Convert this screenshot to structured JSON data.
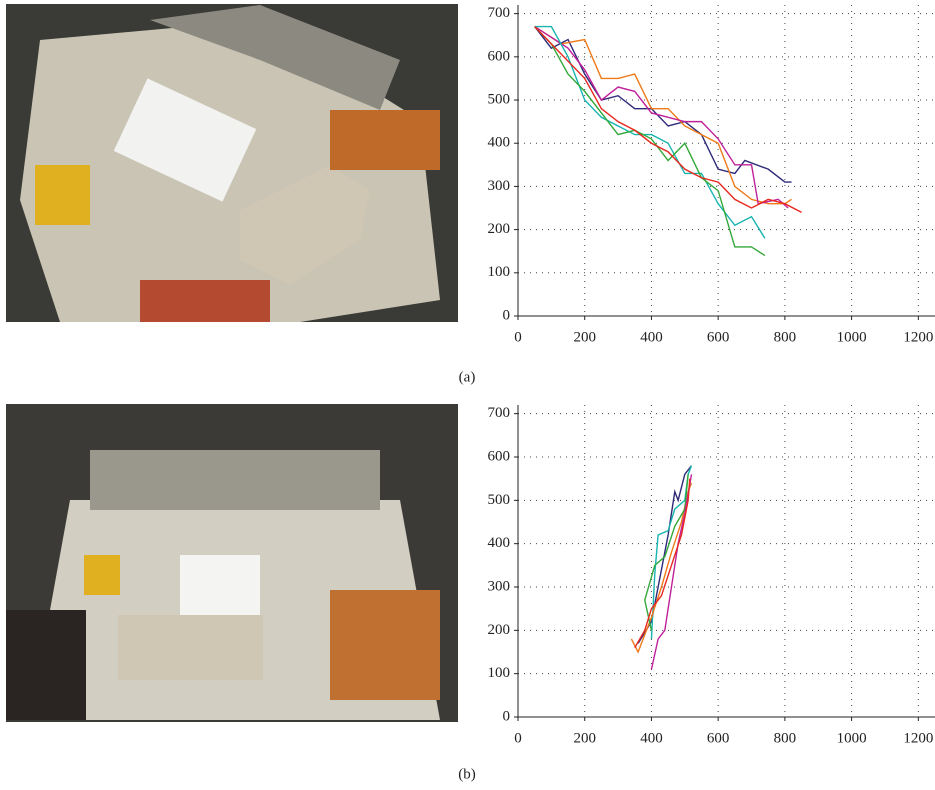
{
  "chart_data": [
    {
      "type": "line",
      "caption": "(a)",
      "xlim": [
        0,
        1250
      ],
      "ylim": [
        0,
        720
      ],
      "xticks": [
        0,
        200,
        400,
        600,
        800,
        1000,
        1200
      ],
      "yticks": [
        0,
        100,
        200,
        300,
        400,
        500,
        600,
        700
      ],
      "grid": true,
      "series": [
        {
          "color": "#2e2a7a",
          "x": [
            50,
            100,
            150,
            200,
            250,
            300,
            350,
            400,
            450,
            500,
            550,
            600,
            650,
            680,
            750,
            800,
            820
          ],
          "values": [
            670,
            620,
            640,
            560,
            500,
            510,
            480,
            480,
            440,
            450,
            420,
            340,
            330,
            360,
            340,
            310,
            310
          ]
        },
        {
          "color": "#f07a1a",
          "x": [
            50,
            130,
            200,
            250,
            300,
            350,
            400,
            450,
            500,
            550,
            600,
            650,
            700,
            750,
            800,
            820
          ],
          "values": [
            670,
            630,
            640,
            550,
            550,
            560,
            480,
            480,
            440,
            420,
            400,
            300,
            270,
            260,
            260,
            270
          ]
        },
        {
          "color": "#c0209a",
          "x": [
            50,
            150,
            200,
            250,
            300,
            350,
            400,
            450,
            500,
            550,
            600,
            650,
            700,
            720,
            780,
            810
          ],
          "values": [
            670,
            620,
            570,
            500,
            530,
            520,
            470,
            460,
            450,
            450,
            410,
            350,
            350,
            260,
            270,
            250
          ]
        },
        {
          "color": "#18b4b0",
          "x": [
            50,
            100,
            150,
            200,
            250,
            300,
            350,
            400,
            450,
            500,
            550,
            600,
            650,
            700,
            740
          ],
          "values": [
            670,
            670,
            600,
            500,
            460,
            440,
            420,
            420,
            400,
            330,
            330,
            260,
            210,
            230,
            180
          ]
        },
        {
          "color": "#34a83a",
          "x": [
            50,
            100,
            150,
            200,
            250,
            300,
            350,
            400,
            450,
            500,
            550,
            600,
            650,
            700,
            740
          ],
          "values": [
            670,
            630,
            560,
            520,
            470,
            420,
            430,
            410,
            360,
            400,
            320,
            290,
            160,
            160,
            140
          ]
        },
        {
          "color": "#e8281e",
          "x": [
            50,
            200,
            250,
            300,
            350,
            400,
            450,
            500,
            550,
            600,
            650,
            700,
            750,
            800,
            850
          ],
          "values": [
            670,
            550,
            480,
            450,
            430,
            400,
            380,
            340,
            320,
            310,
            270,
            250,
            270,
            260,
            240
          ]
        }
      ]
    },
    {
      "type": "line",
      "caption": "(b)",
      "xlim": [
        0,
        1250
      ],
      "ylim": [
        0,
        720
      ],
      "xticks": [
        0,
        200,
        400,
        600,
        800,
        1000,
        1200
      ],
      "yticks": [
        0,
        100,
        200,
        300,
        400,
        500,
        600,
        700
      ],
      "grid": true,
      "series": [
        {
          "color": "#2e2a7a",
          "x": [
            360,
            400,
            420,
            450,
            470,
            480,
            500,
            510,
            520
          ],
          "values": [
            170,
            220,
            300,
            420,
            520,
            500,
            560,
            570,
            580
          ]
        },
        {
          "color": "#18b4b0",
          "x": [
            400,
            410,
            420,
            450,
            470,
            500,
            510,
            520
          ],
          "values": [
            180,
            330,
            420,
            430,
            480,
            500,
            560,
            580
          ]
        },
        {
          "color": "#f07a1a",
          "x": [
            340,
            360,
            400,
            430,
            460,
            490,
            510,
            520
          ],
          "values": [
            180,
            150,
            230,
            300,
            380,
            450,
            520,
            540
          ]
        },
        {
          "color": "#34a83a",
          "x": [
            400,
            380,
            410,
            440,
            470,
            500,
            510
          ],
          "values": [
            200,
            270,
            350,
            370,
            440,
            480,
            560
          ]
        },
        {
          "color": "#c0209a",
          "x": [
            400,
            420,
            440,
            460,
            480,
            500,
            520
          ],
          "values": [
            110,
            180,
            200,
            300,
            400,
            470,
            560
          ]
        },
        {
          "color": "#e8281e",
          "x": [
            350,
            380,
            400,
            430,
            460,
            490,
            510,
            515
          ],
          "values": [
            160,
            200,
            250,
            280,
            350,
            420,
            500,
            550
          ]
        }
      ]
    }
  ]
}
